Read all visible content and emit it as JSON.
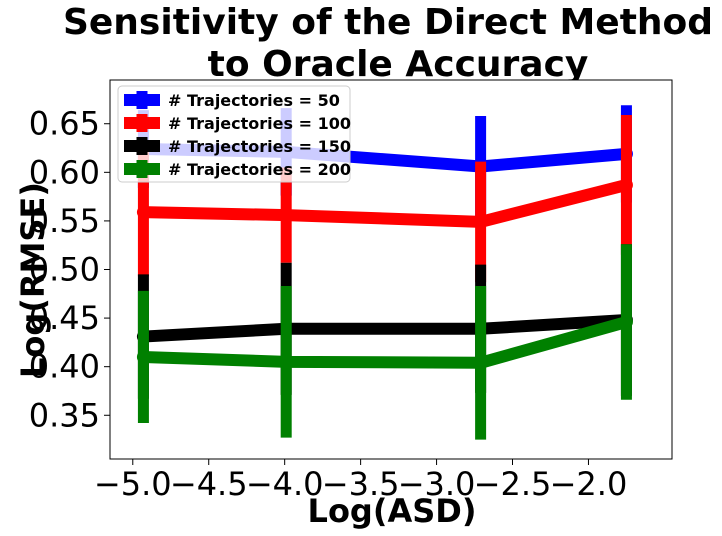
{
  "chart_data": {
    "type": "line",
    "title_lines": [
      "Sensitivity of the Direct Method",
      "to Oracle Accuracy"
    ],
    "xlabel": "Log(ASD)",
    "ylabel": "Log(RMSE)",
    "xlim": [
      -5.15,
      -1.45
    ],
    "ylim": [
      0.305,
      0.695
    ],
    "xticks": [
      -5.0,
      -4.5,
      -4.0,
      -3.5,
      -3.0,
      -2.5,
      -2.0
    ],
    "xtick_labels": [
      "−5.0",
      "−4.5",
      "−4.0",
      "−3.5",
      "−3.0",
      "−2.5",
      "−2.0"
    ],
    "yticks": [
      0.35,
      0.4,
      0.45,
      0.5,
      0.55,
      0.6,
      0.65
    ],
    "ytick_labels": [
      "0.35",
      "0.40",
      "0.45",
      "0.50",
      "0.55",
      "0.60",
      "0.65"
    ],
    "legend_position": "upper-left",
    "x": [
      -4.93,
      -3.99,
      -2.71,
      -1.75
    ],
    "series": [
      {
        "name": "# Trajectories = 50",
        "color": "#0000ff",
        "values": [
          0.624,
          0.621,
          0.606,
          0.619
        ],
        "err": [
          0.04,
          0.045,
          0.052,
          0.05
        ]
      },
      {
        "name": "# Trajectories = 100",
        "color": "#ff0000",
        "values": [
          0.559,
          0.556,
          0.549,
          0.587
        ],
        "err": [
          0.066,
          0.049,
          0.062,
          0.072
        ]
      },
      {
        "name": "# Trajectories = 150",
        "color": "#000000",
        "values": [
          0.431,
          0.439,
          0.439,
          0.448
        ],
        "err": [
          0.064,
          0.068,
          0.066,
          0.078
        ]
      },
      {
        "name": "# Trajectories = 200",
        "color": "#008000",
        "values": [
          0.41,
          0.405,
          0.404,
          0.446
        ],
        "err": [
          0.068,
          0.078,
          0.079,
          0.08
        ]
      }
    ]
  }
}
